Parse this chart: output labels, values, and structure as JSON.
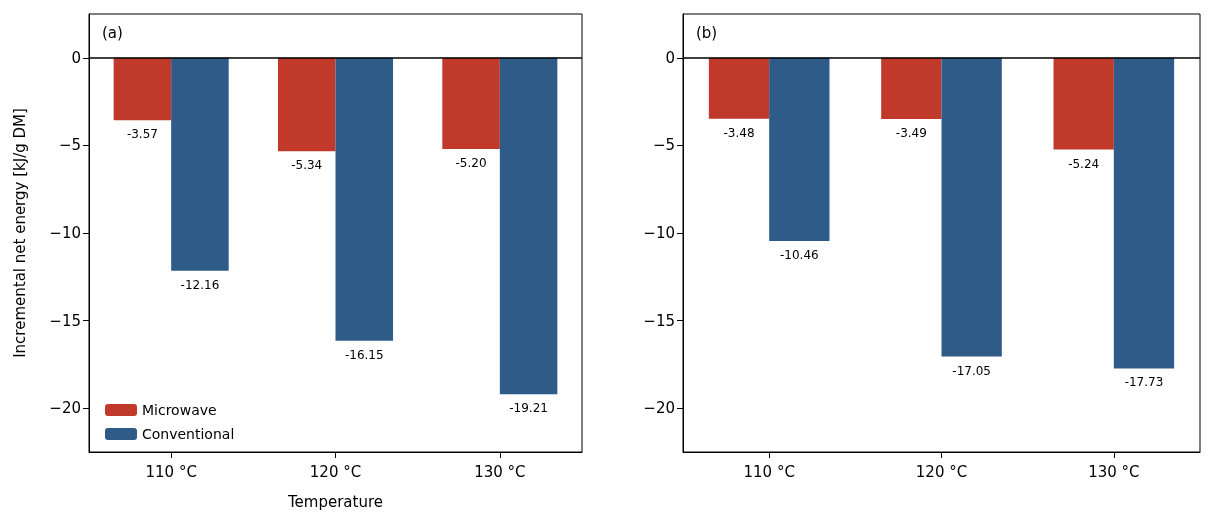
{
  "chart_data": [
    {
      "type": "bar",
      "title": "(a)",
      "xlabel": "Temperature",
      "ylabel": "Incremental net energy [kJ/g DM]",
      "categories": [
        "110 °C",
        "120 °C",
        "130 °C"
      ],
      "series": [
        {
          "name": "Microwave",
          "color": "#c0392b",
          "values": [
            -3.57,
            -5.34,
            -5.2
          ],
          "value_labels": [
            "-3.57",
            "-5.34",
            "-5.20"
          ]
        },
        {
          "name": "Conventional",
          "color": "#2e5b87",
          "values": [
            -12.16,
            -16.15,
            -19.21
          ]
        }
      ],
      "ylim": [
        -22.5,
        2.5
      ],
      "yticks": [
        -20,
        -15,
        -10,
        -5,
        0
      ],
      "ref_lines": [
        {
          "axis": "y",
          "value": 0,
          "color": "#000000"
        }
      ],
      "data_labels": true,
      "grid": false,
      "legend": "bottom left"
    },
    {
      "type": "bar",
      "title": "(b)",
      "categories": [
        "110 °C",
        "120 °C",
        "130 °C"
      ],
      "series": [
        {
          "color": "#c0392b",
          "values": [
            -3.48,
            -3.49,
            -5.24
          ]
        },
        {
          "color": "#2e5b87",
          "values": [
            -10.46,
            -17.05,
            -17.73
          ]
        }
      ],
      "ylim": [
        -22.5,
        2.5
      ],
      "yticks": [
        -20,
        -15,
        -10,
        -5,
        0
      ],
      "ref_lines": [
        {
          "axis": "y",
          "value": 0,
          "color": "#000000"
        }
      ],
      "data_labels": true,
      "grid": false,
      "legend": false
    }
  ]
}
